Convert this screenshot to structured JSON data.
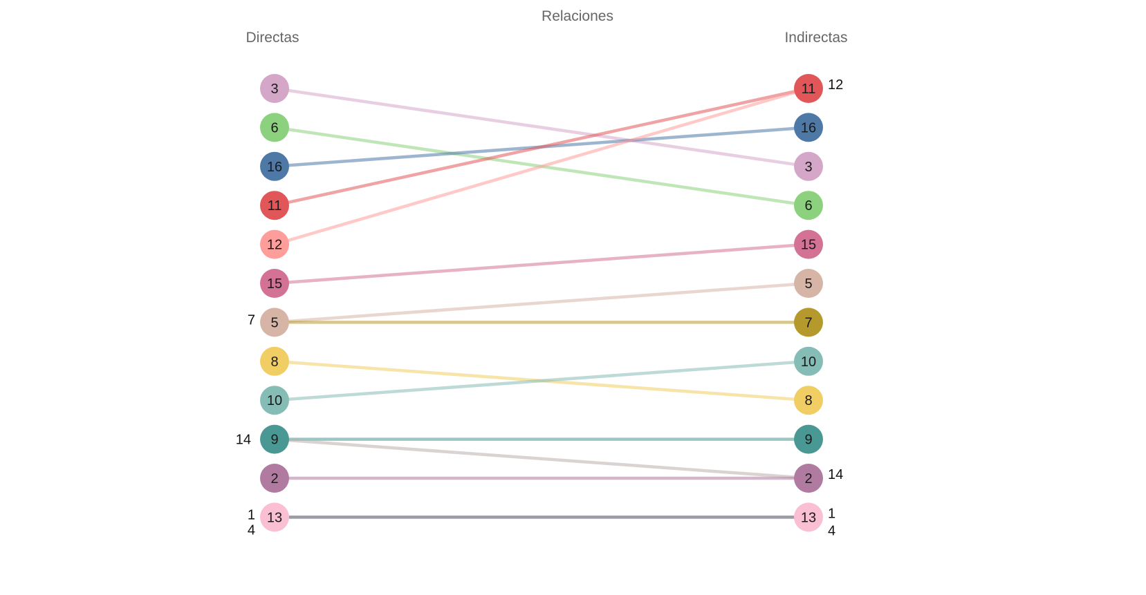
{
  "chart_data": {
    "type": "slope",
    "title": "Relaciones",
    "left_label": "Directas",
    "right_label": "Indirectas",
    "left_order": [
      "3",
      "6",
      "16",
      "11",
      "12",
      "15",
      "5",
      "8",
      "10",
      "9",
      "2",
      "13"
    ],
    "right_order": [
      "11",
      "16",
      "3",
      "6",
      "15",
      "5",
      "7",
      "10",
      "8",
      "9",
      "2",
      "13"
    ],
    "colors": {
      "1": "#a0cbe8",
      "2": "#b07aa1",
      "3": "#d4a6c8",
      "4": "#79706e",
      "5": "#d7b5a6",
      "6": "#8cd17d",
      "7": "#b6992d",
      "8": "#f1ce63",
      "9": "#499894",
      "10": "#86bcb6",
      "11": "#e15759",
      "12": "#ff9d9a",
      "13": "#fabfd2",
      "14": "#bab0ac",
      "15": "#d37295",
      "16": "#4e79a7"
    },
    "links": [
      {
        "from": "3",
        "to": "3"
      },
      {
        "from": "6",
        "to": "6"
      },
      {
        "from": "16",
        "to": "16"
      },
      {
        "from": "11",
        "to": "11"
      },
      {
        "from": "12",
        "to": "11"
      },
      {
        "from": "15",
        "to": "15"
      },
      {
        "from": "5",
        "to": "5"
      },
      {
        "from": "7",
        "to": "7"
      },
      {
        "from": "8",
        "to": "8"
      },
      {
        "from": "10",
        "to": "10"
      },
      {
        "from": "9",
        "to": "9"
      },
      {
        "from": "14",
        "to": "2"
      },
      {
        "from": "2",
        "to": "2"
      },
      {
        "from": "13",
        "to": "13"
      },
      {
        "from": "1",
        "to": "13"
      },
      {
        "from": "4",
        "to": "13"
      }
    ],
    "left_annotations": [
      {
        "text": "7",
        "node": "5",
        "pos": "left-above"
      },
      {
        "text": "14",
        "node": "9",
        "pos": "left"
      },
      {
        "text": "1",
        "node": "13",
        "pos": "left-above"
      },
      {
        "text": "4",
        "node": "13",
        "pos": "left-below"
      }
    ],
    "right_annotations": [
      {
        "text": "12",
        "node": "11",
        "pos": "right-above"
      },
      {
        "text": "14",
        "node": "2",
        "pos": "right-above"
      },
      {
        "text": "1",
        "node": "13",
        "pos": "right-above"
      },
      {
        "text": "4",
        "node": "13",
        "pos": "right-below"
      }
    ]
  }
}
